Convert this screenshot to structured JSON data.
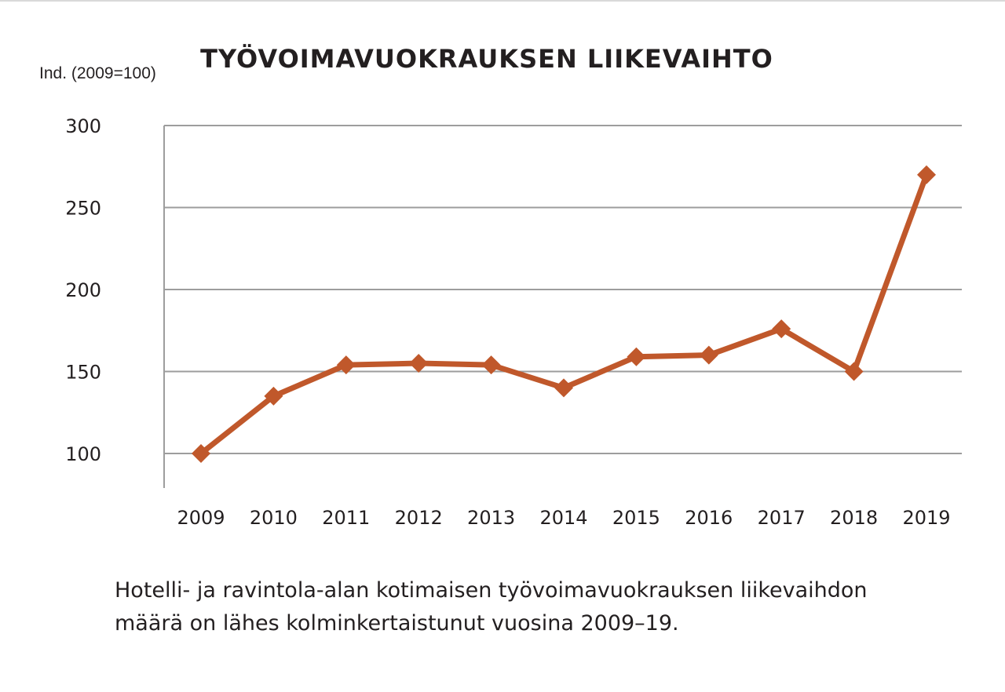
{
  "chart_data": {
    "type": "line",
    "title": "TYÖVOIMAVUOKRAUKSEN LIIKEVAIHTO",
    "ylabel": "Ind. (2009=100)",
    "xlabel": "",
    "categories": [
      "2009",
      "2010",
      "2011",
      "2012",
      "2013",
      "2014",
      "2015",
      "2016",
      "2017",
      "2018",
      "2019"
    ],
    "series": [
      {
        "values": [
          100,
          135,
          154,
          155,
          154,
          140,
          159,
          160,
          176,
          150,
          270
        ]
      }
    ],
    "ylim": [
      80,
      300
    ],
    "yticks": [
      100,
      150,
      200,
      250,
      300
    ],
    "grid": true,
    "line_color": "#c0582b",
    "grid_color": "#9d9d9d",
    "axis_color": "#9d9d9d"
  },
  "caption": {
    "line1": "Hotelli- ja ravintola-alan kotimaisen työvoimavuokrauksen liikevaihdon",
    "line2": "määrä on lähes kolminkertaistunut vuosina 2009–19."
  }
}
